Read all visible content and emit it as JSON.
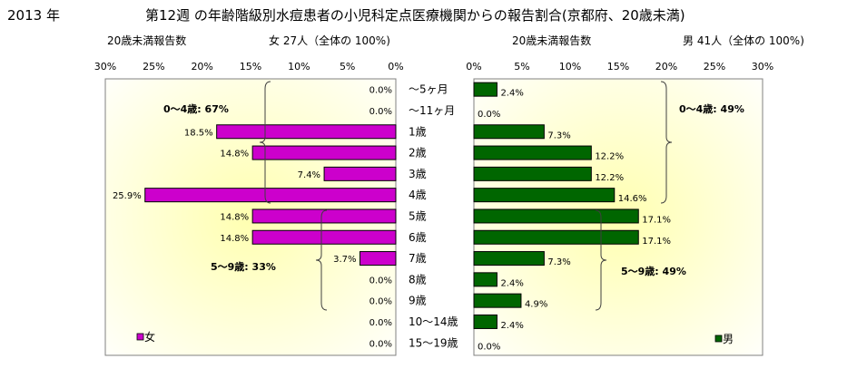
{
  "header": {
    "year": "2013 年",
    "title": "第12週 の年齢階級別水痘患者の小児科定点医療機関からの報告割合(京都府、20歳未満)",
    "female_sub_left": "20歳未満報告数",
    "female_sub_right": "女 27人（全体の 100%)",
    "male_sub_left": "20歳未満報告数",
    "male_sub_right": "男 41人（全体の 100%)"
  },
  "chart_data": [
    {
      "type": "bar",
      "orientation": "horizontal",
      "direction": "right-to-left",
      "categories": [
        "～5ヶ月",
        "～11ヶ月",
        "1歳",
        "2歳",
        "3歳",
        "4歳",
        "5歳",
        "6歳",
        "7歳",
        "8歳",
        "9歳",
        "10～14歳",
        "15～19歳"
      ],
      "series": [
        {
          "name": "女",
          "color": "#cc00cc",
          "values": [
            0.0,
            0.0,
            18.5,
            14.8,
            7.4,
            25.9,
            14.8,
            14.8,
            3.7,
            0.0,
            0.0,
            0.0,
            0.0
          ]
        }
      ],
      "value_labels": [
        "0.0%",
        "0.0%",
        "18.5%",
        "14.8%",
        "7.4%",
        "25.9%",
        "14.8%",
        "14.8%",
        "3.7%",
        "0.0%",
        "0.0%",
        "0.0%",
        "0.0%"
      ],
      "xlim": [
        0,
        30
      ],
      "xticks": [
        "30%",
        "25%",
        "20%",
        "15%",
        "10%",
        "5%",
        "0%"
      ],
      "legend": "bottom-left",
      "annotations": [
        "0～4歳: 67%",
        "5～9歳: 33%"
      ]
    },
    {
      "type": "bar",
      "orientation": "horizontal",
      "direction": "left-to-right",
      "categories": [
        "～5ヶ月",
        "～11ヶ月",
        "1歳",
        "2歳",
        "3歳",
        "4歳",
        "5歳",
        "6歳",
        "7歳",
        "8歳",
        "9歳",
        "10～14歳",
        "15～19歳"
      ],
      "series": [
        {
          "name": "男",
          "color": "#006600",
          "values": [
            2.4,
            0.0,
            7.3,
            12.2,
            12.2,
            14.6,
            17.1,
            17.1,
            7.3,
            2.4,
            4.9,
            2.4,
            0.0
          ]
        }
      ],
      "value_labels": [
        "2.4%",
        "0.0%",
        "7.3%",
        "12.2%",
        "12.2%",
        "14.6%",
        "17.1%",
        "17.1%",
        "7.3%",
        "2.4%",
        "4.9%",
        "2.4%",
        "0.0%"
      ],
      "xlim": [
        0,
        30
      ],
      "xticks": [
        "0%",
        "5%",
        "10%",
        "15%",
        "20%",
        "25%",
        "30%"
      ],
      "legend": "bottom-right",
      "annotations": [
        "0～4歳: 49%",
        "5～9歳: 49%"
      ]
    }
  ]
}
